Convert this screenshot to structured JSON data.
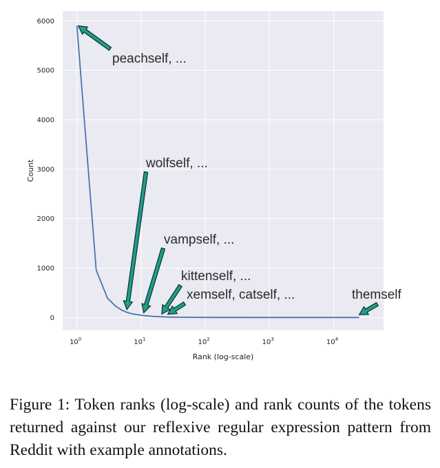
{
  "chart_data": {
    "type": "line",
    "xscale": "log",
    "xlabel": "Rank (log-scale)",
    "ylabel": "Count",
    "xlim": [
      0.6,
      60000
    ],
    "ylim": [
      -260,
      6200
    ],
    "grid": true,
    "xticks": [
      {
        "base": "10",
        "exp": "0"
      },
      {
        "base": "10",
        "exp": "1"
      },
      {
        "base": "10",
        "exp": "2"
      },
      {
        "base": "10",
        "exp": "3"
      },
      {
        "base": "10",
        "exp": "4"
      }
    ],
    "yticks": [
      "0",
      "1000",
      "2000",
      "3000",
      "4000",
      "5000",
      "6000"
    ],
    "series": [
      {
        "color": "#4c72b0",
        "x": [
          1,
          2,
          3,
          4,
          5,
          6,
          7,
          8,
          9,
          10,
          12,
          15,
          20,
          30,
          50,
          100,
          1000,
          10000,
          25000
        ],
        "y": [
          5900,
          960,
          390,
          230,
          150,
          105,
          80,
          65,
          55,
          45,
          35,
          22,
          14,
          8,
          4,
          2,
          1,
          1,
          1
        ]
      }
    ],
    "annotations": [
      {
        "text": "peachself, ...",
        "point": [
          1,
          5900
        ]
      },
      {
        "text": "wolfself, ...",
        "point": [
          6,
          105
        ]
      },
      {
        "text": "vampself, ...",
        "point": [
          11,
          40
        ]
      },
      {
        "text": "kittenself, ...",
        "point": [
          21,
          14
        ]
      },
      {
        "text": "xemself, catself, ...",
        "point": [
          26,
          10
        ]
      },
      {
        "text": "themself",
        "point": [
          25000,
          1
        ]
      }
    ],
    "style": {
      "background": "#eaeaf2",
      "grid_color": "#ffffff",
      "annotation_fill": "#1e9e8b",
      "annotation_edge": "#0b2e2a"
    }
  },
  "caption": "Figure 1: Token ranks (log-scale) and rank counts of the tokens returned against our reflexive regular expression pattern from Reddit with example annotations."
}
